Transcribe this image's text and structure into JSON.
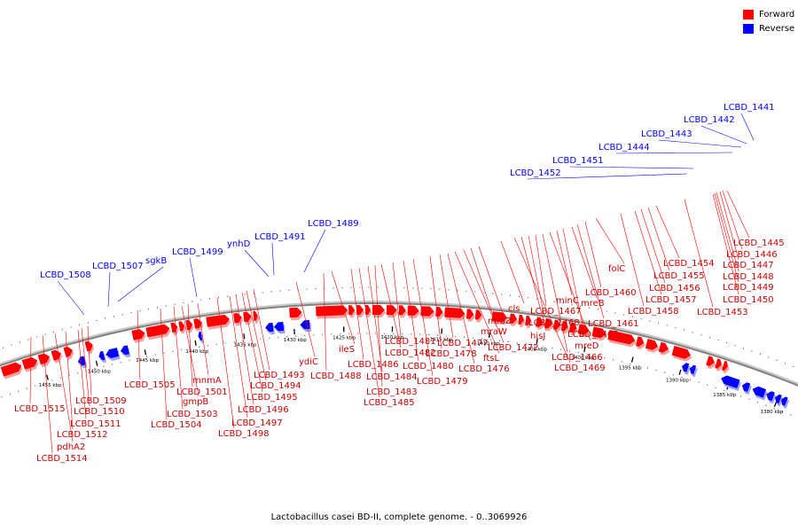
{
  "colors": {
    "forward": "#ff0000",
    "reverse": "#0000ff",
    "backbone": "#808080"
  },
  "legend": [
    {
      "label": "Forward",
      "color": "#ff0000"
    },
    {
      "label": "Reverse",
      "color": "#0000ff"
    }
  ],
  "caption": "Lactobacillus casei BD-II, complete genome. - 0..3069926",
  "ticks": [
    "1380 kbp",
    "1385 kbp",
    "1390 kbp",
    "1395 kbp",
    "1400 kbp",
    "1405 kbp",
    "1410 kbp",
    "1415 kbp",
    "1420 kbp",
    "1425 kbp",
    "1430 kbp",
    "1435 kbp",
    "1440 kbp",
    "1445 kbp",
    "1450 kbp",
    "1455 kbp"
  ],
  "reverse_labels": [
    "LCBD_1441",
    "LCBD_1442",
    "LCBD_1443",
    "LCBD_1444",
    "LCBD_1451",
    "LCBD_1452",
    "LCBD_1489",
    "ynhD",
    "LCBD_1491",
    "LCBD_1499",
    "sgkB",
    "LCBD_1507",
    "LCBD_1508"
  ],
  "forward_labels": [
    "LCBD_1445",
    "LCBD_1446",
    "LCBD_1447",
    "LCBD_1448",
    "LCBD_1449",
    "LCBD_1450",
    "LCBD_1453",
    "LCBD_1454",
    "LCBD_1455",
    "LCBD_1456",
    "LCBD_1457",
    "LCBD_1458",
    "folC",
    "LCBD_1460",
    "LCBD_1461",
    "mreB",
    "LCBD_1463",
    "minC",
    "mreD",
    "LCBD_1466",
    "LCBD_1467",
    "LCBD_1468",
    "hisJ",
    "LCBD_1469",
    "cls",
    "mraZ",
    "mraW",
    "LCBD_1472",
    "ftsL",
    "LCBD_1476",
    "LCBD_1477",
    "LCBD_1478",
    "LCBD_1479",
    "LCBD_1480",
    "LCBD_1481",
    "LCBD_1482",
    "LCBD_1483",
    "LCBD_1484",
    "LCBD_1485",
    "LCBD_1486",
    "ileS",
    "LCBD_1488",
    "ydiC",
    "LCBD_1493",
    "LCBD_1494",
    "LCBD_1495",
    "LCBD_1496",
    "LCBD_1497",
    "LCBD_1498",
    "mnmA",
    "LCBD_1501",
    "gmpB",
    "LCBD_1503",
    "LCBD_1504",
    "LCBD_1505",
    "LCBD_1509",
    "LCBD_1510",
    "LCBD_1511",
    "LCBD_1512",
    "pdhA2",
    "LCBD_1514",
    "LCBD_1515"
  ]
}
